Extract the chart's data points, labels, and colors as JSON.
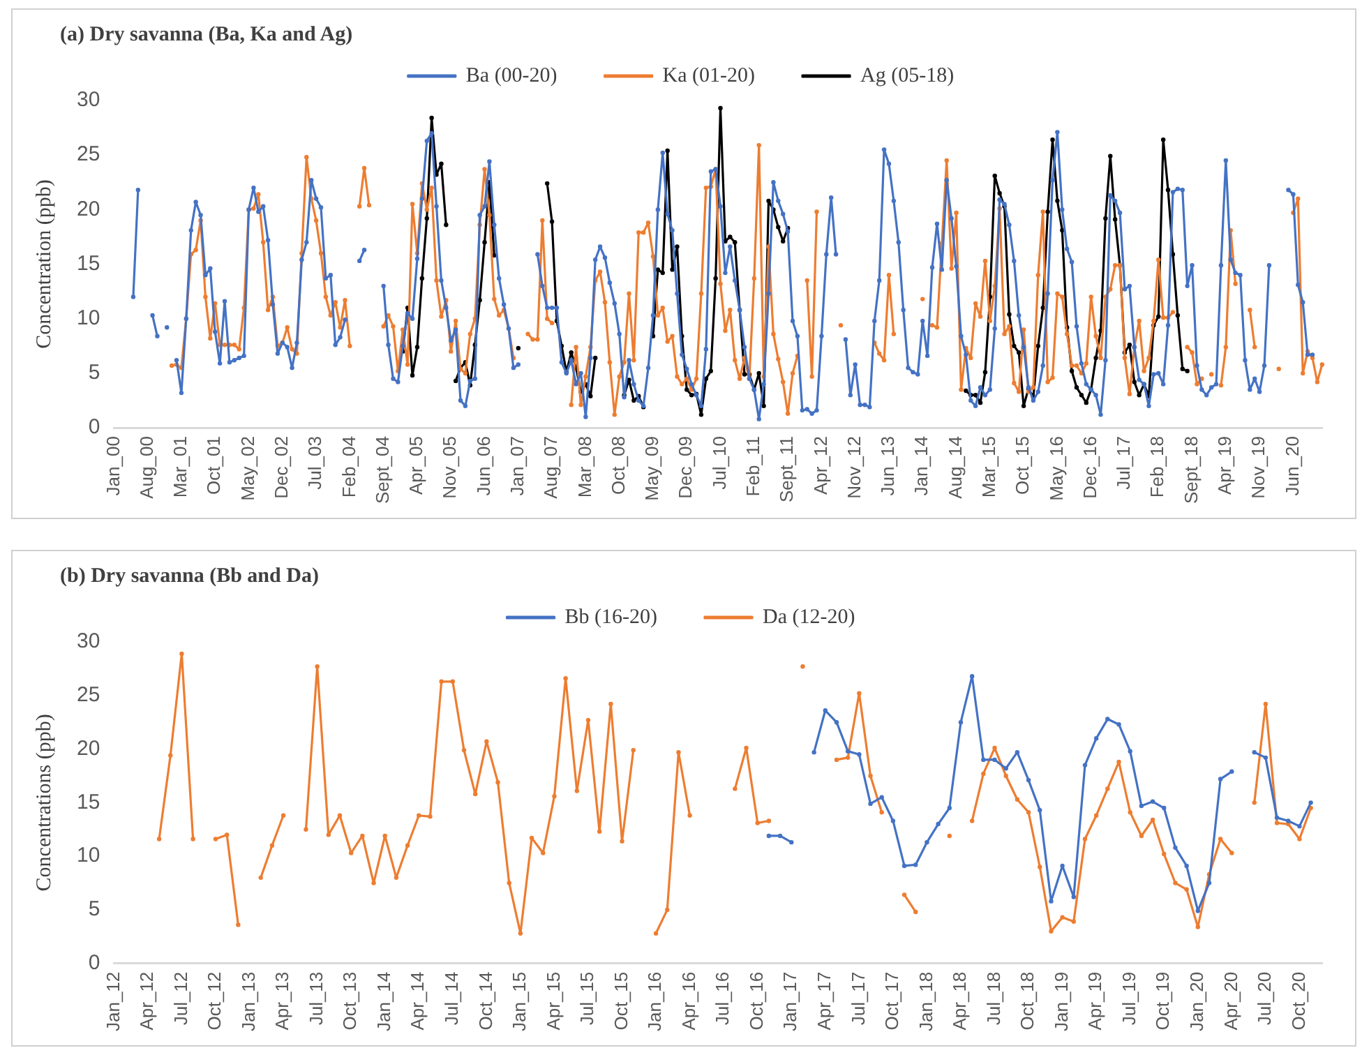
{
  "chart_data": [
    {
      "type": "line",
      "title": "(a) Dry savanna (Ba, Ka and Ag)",
      "ylabel": "Concentration (ppb)",
      "legend": "top",
      "marker": "circle",
      "line_style": "solid",
      "ylim": [
        0,
        30
      ],
      "yticks": [
        0,
        5,
        10,
        15,
        20,
        25,
        30
      ],
      "categories": [
        "Jan_00",
        null,
        null,
        null,
        null,
        null,
        null,
        "Aug_00",
        null,
        null,
        null,
        null,
        null,
        null,
        "Mar_01",
        null,
        null,
        null,
        null,
        null,
        null,
        "Oct_01",
        null,
        null,
        null,
        null,
        null,
        null,
        "May_02",
        null,
        null,
        null,
        null,
        null,
        null,
        "Dec_02",
        null,
        null,
        null,
        null,
        null,
        null,
        "Jul_03",
        null,
        null,
        null,
        null,
        null,
        null,
        "Feb_04",
        null,
        null,
        null,
        null,
        null,
        null,
        "Sept_04",
        null,
        null,
        null,
        null,
        null,
        null,
        "Apr_05",
        null,
        null,
        null,
        null,
        null,
        null,
        "Nov_05",
        null,
        null,
        null,
        null,
        null,
        null,
        "Jun_06",
        null,
        null,
        null,
        null,
        null,
        null,
        "Jan_07",
        null,
        null,
        null,
        null,
        null,
        null,
        "Aug_07",
        null,
        null,
        null,
        null,
        null,
        null,
        "Mar_08",
        null,
        null,
        null,
        null,
        null,
        null,
        "Oct_08",
        null,
        null,
        null,
        null,
        null,
        null,
        "May_09",
        null,
        null,
        null,
        null,
        null,
        null,
        "Dec_09",
        null,
        null,
        null,
        null,
        null,
        null,
        "Jul_10",
        null,
        null,
        null,
        null,
        null,
        null,
        "Feb_11",
        null,
        null,
        null,
        null,
        null,
        null,
        "Sept_11",
        null,
        null,
        null,
        null,
        null,
        null,
        "Apr_12",
        null,
        null,
        null,
        null,
        null,
        null,
        "Nov_12",
        null,
        null,
        null,
        null,
        null,
        null,
        "Jun_13",
        null,
        null,
        null,
        null,
        null,
        null,
        "Jan_14",
        null,
        null,
        null,
        null,
        null,
        null,
        "Aug_14",
        null,
        null,
        null,
        null,
        null,
        null,
        "Mar_15",
        null,
        null,
        null,
        null,
        null,
        null,
        "Oct_15",
        null,
        null,
        null,
        null,
        null,
        null,
        "May_16",
        null,
        null,
        null,
        null,
        null,
        null,
        "Dec_16",
        null,
        null,
        null,
        null,
        null,
        null,
        "Jul_17",
        null,
        null,
        null,
        null,
        null,
        null,
        "Feb_18",
        null,
        null,
        null,
        null,
        null,
        null,
        "Sept_18",
        null,
        null,
        null,
        null,
        null,
        null,
        "Apr_19",
        null,
        null,
        null,
        null,
        null,
        null,
        "Nov_19",
        null,
        null,
        null,
        null,
        null,
        null,
        "Jun_20",
        null,
        null,
        null,
        null,
        null,
        null
      ],
      "series": [
        {
          "name": "Ba (00-20)",
          "color": "#4472c4",
          "values": [
            null,
            null,
            null,
            null,
            12,
            21.8,
            null,
            null,
            10.3,
            8.4,
            null,
            9.2,
            null,
            6.2,
            3.2,
            10,
            18.1,
            20.7,
            19.5,
            14,
            14.6,
            8.8,
            5.9,
            11.6,
            6,
            6.2,
            6.4,
            6.6,
            20,
            22,
            19.8,
            20.3,
            17.2,
            11.3,
            6.8,
            7.8,
            7.4,
            5.5,
            7.8,
            15.4,
            17,
            22.7,
            21,
            20.2,
            13.7,
            14,
            7.6,
            8.3,
            9.9,
            null,
            null,
            15.3,
            16.3,
            null,
            null,
            null,
            13,
            7.6,
            4.5,
            4.2,
            7.5,
            10.5,
            10,
            15.5,
            21,
            26.3,
            27,
            20.3,
            13.5,
            11,
            8,
            9,
            2.5,
            2,
            4.3,
            4.5,
            19.5,
            20.3,
            24.4,
            18.6,
            13.7,
            11.3,
            9.1,
            5.5,
            5.8,
            null,
            null,
            null,
            15.9,
            13,
            11,
            11,
            11,
            6,
            5,
            6.2,
            4,
            5,
            1,
            6.4,
            15.4,
            16.6,
            15.6,
            13.3,
            11.4,
            8.6,
            2.8,
            6.2,
            4,
            2.5,
            2,
            5.5,
            10.3,
            20,
            25.2,
            19.6,
            18.1,
            12.3,
            6.7,
            5.4,
            4,
            3,
            2,
            7.2,
            23.5,
            23.7,
            20.3,
            14.2,
            16.6,
            13.5,
            10.8,
            7.4,
            4.5,
            3.5,
            0.8,
            4,
            12.3,
            22.5,
            20.8,
            19.6,
            18,
            9.8,
            8.4,
            1.6,
            1.7,
            1.3,
            1.6,
            8.4,
            15.9,
            21.1,
            15.9,
            null,
            8.1,
            3,
            5.8,
            2.1,
            2.1,
            1.9,
            9.8,
            13.5,
            25.5,
            24.2,
            20.8,
            17,
            10.8,
            5.5,
            5.1,
            4.9,
            9.8,
            6.6,
            14.7,
            18.7,
            14.5,
            22.7,
            19.2,
            14.8,
            8.4,
            6.7,
            2.5,
            2,
            3.7,
            3,
            3.5,
            9.1,
            20.9,
            20.5,
            18.6,
            15.3,
            10.3,
            7.4,
            3.7,
            2.5,
            3.3,
            5.7,
            12.3,
            22.7,
            27.1,
            20,
            16.4,
            15.2,
            9.3,
            5.9,
            4,
            3.5,
            3,
            1.2,
            6.2,
            21.3,
            20.8,
            19.7,
            12.7,
            13,
            7.4,
            4.4,
            4,
            2,
            4.9,
            5,
            4,
            9.4,
            21.6,
            21.9,
            21.8,
            13,
            14.9,
            5.7,
            3.5,
            3,
            3.7,
            4,
            14.9,
            24.5,
            15.4,
            14.2,
            14,
            6.2,
            3.5,
            4.5,
            3.3,
            5.7,
            14.9,
            null,
            null,
            null,
            21.8,
            21.4,
            13.1,
            11.5,
            6.7,
            6.7,
            null,
            null
          ]
        },
        {
          "name": "Ka (01-20)",
          "color": "#ed7d31",
          "values": [
            null,
            null,
            null,
            null,
            null,
            null,
            null,
            null,
            null,
            null,
            null,
            null,
            5.7,
            5.8,
            5.5,
            10,
            15.9,
            16.3,
            19,
            12,
            8.2,
            11.4,
            7.6,
            7.6,
            7.6,
            7.6,
            7.2,
            11,
            20,
            20.1,
            21.4,
            17,
            10.8,
            12,
            7.5,
            7.8,
            9.2,
            7.2,
            6.8,
            16,
            24.8,
            21,
            19,
            16,
            12,
            10.3,
            11.5,
            9.2,
            11.7,
            7.5,
            null,
            20.3,
            23.8,
            20.4,
            null,
            null,
            9.3,
            10.3,
            9.3,
            5.2,
            9,
            5.8,
            20.5,
            16,
            22.4,
            20,
            22,
            13.5,
            10.2,
            11.7,
            7,
            9.8,
            5.4,
            5,
            8.6,
            10,
            18.6,
            23.7,
            19.5,
            11.8,
            10.3,
            10.8,
            9.1,
            6.4,
            null,
            null,
            8.6,
            8.1,
            8.1,
            19,
            10,
            9.6,
            null,
            null,
            null,
            2.1,
            7.4,
            2.1,
            4.7,
            7.4,
            13.5,
            14.3,
            11.5,
            6,
            1.2,
            4.7,
            6,
            12.3,
            6.2,
            17.9,
            17.9,
            18.8,
            15.7,
            10.3,
            11,
            7.9,
            8.4,
            4.7,
            4,
            4.5,
            3.5,
            4.5,
            12.3,
            22,
            22.1,
            23.7,
            13.2,
            8.9,
            10.8,
            6.2,
            4.5,
            6.4,
            4.5,
            13.7,
            25.9,
            4.7,
            16.6,
            8.6,
            6.3,
            4.2,
            1.3,
            5,
            6.6,
            null,
            13.5,
            4.7,
            19.8,
            null,
            null,
            null,
            null,
            9.4,
            null,
            null,
            null,
            null,
            null,
            null,
            7.8,
            6.8,
            6.2,
            14,
            8.6,
            null,
            null,
            null,
            null,
            null,
            11.8,
            null,
            9.4,
            9.2,
            16.9,
            24.5,
            14.6,
            19.7,
            3.5,
            7.3,
            6.4,
            11.4,
            10.2,
            15.3,
            9.8,
            13,
            20.1,
            8.6,
            9.3,
            4.1,
            3.3,
            9,
            3.3,
            3.7,
            14,
            19.8,
            4.2,
            4.6,
            12.3,
            12,
            8.6,
            5.7,
            5.7,
            5,
            5.9,
            12,
            8.4,
            6.4,
            12,
            12.7,
            14.9,
            14.9,
            6.4,
            3.1,
            7.4,
            9.8,
            5.2,
            6.4,
            9.8,
            15.4,
            10.1,
            10.1,
            10.6,
            null,
            null,
            7.4,
            6.9,
            4,
            4.5,
            null,
            4.9,
            null,
            3.9,
            7.4,
            18.1,
            13.2,
            null,
            null,
            10.8,
            7.4,
            null,
            null,
            null,
            null,
            5.4,
            null,
            null,
            19.7,
            21,
            5,
            7,
            6.4,
            4.2,
            5.8
          ]
        },
        {
          "name": "Ag (05-18)",
          "color": "#000000",
          "values": [
            null,
            null,
            null,
            null,
            null,
            null,
            null,
            null,
            null,
            null,
            null,
            null,
            null,
            null,
            null,
            null,
            null,
            null,
            null,
            null,
            null,
            null,
            null,
            null,
            null,
            null,
            null,
            null,
            null,
            null,
            null,
            null,
            null,
            null,
            null,
            null,
            null,
            null,
            null,
            null,
            null,
            null,
            null,
            null,
            null,
            null,
            null,
            null,
            null,
            null,
            null,
            null,
            null,
            null,
            null,
            null,
            null,
            null,
            null,
            null,
            7,
            11,
            4.8,
            7.4,
            13.7,
            19.2,
            28.4,
            23.2,
            24.2,
            18.6,
            null,
            4.3,
            5.5,
            6,
            3.9,
            7.6,
            11.7,
            17,
            22.5,
            15.8,
            null,
            null,
            null,
            null,
            7.3,
            null,
            null,
            null,
            null,
            null,
            22.4,
            18.9,
            9.8,
            7.5,
            5.1,
            6.9,
            5.5,
            3.3,
            4,
            2.9,
            6.4,
            null,
            null,
            null,
            null,
            null,
            3,
            4.4,
            2.5,
            2.9,
            1.9,
            null,
            8.4,
            14.5,
            14.2,
            25.4,
            14.5,
            16.6,
            8.4,
            3.5,
            3,
            3.1,
            1.2,
            4.5,
            5.2,
            13.7,
            29.3,
            17.1,
            17.5,
            17,
            10.8,
            4.9,
            4.9,
            3.5,
            5,
            2,
            20.8,
            20,
            18.4,
            17.1,
            18.3,
            null,
            null,
            null,
            null,
            null,
            null,
            null,
            null,
            null,
            null,
            null,
            null,
            null,
            null,
            null,
            null,
            null,
            null,
            null,
            null,
            null,
            null,
            null,
            null,
            null,
            null,
            null,
            null,
            null,
            null,
            null,
            null,
            null,
            null,
            null,
            null,
            3.4,
            3,
            3,
            2.3,
            5.1,
            12,
            23.1,
            21.5,
            20.3,
            10.4,
            7.5,
            6.9,
            2,
            3.6,
            2.8,
            7.5,
            11,
            19.8,
            26.4,
            20.8,
            18.1,
            9.2,
            5.2,
            3.7,
            3,
            2.3,
            3.5,
            6.4,
            8.9,
            19.2,
            24.9,
            19.1,
            14.9,
            6.9,
            7.6,
            4.2,
            3,
            4,
            2.9,
            9.4,
            10.2,
            26.4,
            21.8,
            15.9,
            10.3,
            5.4,
            5.2,
            null,
            null,
            null,
            null,
            null,
            null,
            null,
            null,
            null,
            null,
            null,
            null,
            null,
            null,
            null,
            null,
            null,
            null,
            null,
            null,
            null,
            null,
            null,
            null,
            null,
            null,
            null,
            null
          ]
        }
      ]
    },
    {
      "type": "line",
      "title": "(b) Dry savanna (Bb and Da)",
      "ylabel": "Concentrations (ppb)",
      "legend": "top",
      "marker": "circle",
      "line_style": "solid",
      "ylim": [
        0,
        30
      ],
      "yticks": [
        0,
        5,
        10,
        15,
        20,
        25,
        30
      ],
      "categories": [
        "Jan_12",
        null,
        null,
        "Apr_12",
        null,
        null,
        "Jul_12",
        null,
        null,
        "Oct_12",
        null,
        null,
        "Jan_13",
        null,
        null,
        "Apr_13",
        null,
        null,
        "Jul_13",
        null,
        null,
        "Oct_13",
        null,
        null,
        "Jan_14",
        null,
        null,
        "Apr_14",
        null,
        null,
        "Jul_14",
        null,
        null,
        "Oct_14",
        null,
        null,
        "Jan_15",
        null,
        null,
        "Apr_15",
        null,
        null,
        "Jul_15",
        null,
        null,
        "Oct_15",
        null,
        null,
        "Jan_16",
        null,
        null,
        "Apr_16",
        null,
        null,
        "Jul_16",
        null,
        null,
        "Oct_16",
        null,
        null,
        "Jan_17",
        null,
        null,
        "Apr_17",
        null,
        null,
        "Jul_17",
        null,
        null,
        "Oct_17",
        null,
        null,
        "Jan_18",
        null,
        null,
        "Apr_18",
        null,
        null,
        "Jul_18",
        null,
        null,
        "Oct_18",
        null,
        null,
        "Jan_19",
        null,
        null,
        "Apr_19",
        null,
        null,
        "Jul_19",
        null,
        null,
        "Oct_19",
        null,
        null,
        "Jan_20",
        null,
        null,
        "Apr_20",
        null,
        null,
        "Jul_20",
        null,
        null,
        "Oct_20",
        null,
        null
      ],
      "series": [
        {
          "name": "Bb (16-20)",
          "color": "#4472c4",
          "values": [
            null,
            null,
            null,
            null,
            null,
            null,
            null,
            null,
            null,
            null,
            null,
            null,
            null,
            null,
            null,
            null,
            null,
            null,
            null,
            null,
            null,
            null,
            null,
            null,
            null,
            null,
            null,
            null,
            null,
            null,
            null,
            null,
            null,
            null,
            null,
            null,
            null,
            null,
            null,
            null,
            null,
            null,
            null,
            null,
            null,
            null,
            null,
            null,
            null,
            null,
            null,
            null,
            null,
            null,
            null,
            null,
            null,
            null,
            11.9,
            11.9,
            11.3,
            null,
            19.7,
            23.6,
            22.5,
            19.8,
            19.5,
            14.9,
            15.5,
            13.3,
            9.1,
            9.2,
            11.3,
            13,
            14.5,
            22.5,
            26.8,
            19,
            19,
            18.2,
            19.7,
            17.1,
            14.3,
            5.8,
            9.1,
            6.2,
            18.5,
            21,
            22.8,
            22.3,
            19.8,
            14.7,
            15.1,
            14.5,
            10.8,
            9.1,
            4.9,
            7.5,
            17.2,
            17.9,
            null,
            19.7,
            19.2,
            13.6,
            13.3,
            12.8,
            15,
            null
          ]
        },
        {
          "name": "Da (12-20)",
          "color": "#ed7d31",
          "values": [
            null,
            null,
            null,
            null,
            11.6,
            19.4,
            28.9,
            11.6,
            null,
            11.6,
            12,
            3.6,
            null,
            8,
            11,
            13.8,
            null,
            12.5,
            27.7,
            12,
            13.8,
            10.3,
            11.9,
            7.5,
            11.9,
            8,
            11,
            13.8,
            13.7,
            26.3,
            26.3,
            19.9,
            15.8,
            20.7,
            16.9,
            7.5,
            2.8,
            11.7,
            10.3,
            15.6,
            26.6,
            16.1,
            22.7,
            12.3,
            24.2,
            11.4,
            19.9,
            null,
            2.8,
            5,
            19.7,
            13.8,
            null,
            null,
            null,
            16.3,
            20.1,
            13.1,
            13.3,
            null,
            null,
            27.7,
            null,
            null,
            19,
            19.2,
            25.2,
            17.5,
            14.1,
            null,
            6.4,
            4.8,
            null,
            null,
            11.9,
            null,
            13.3,
            17.7,
            20.1,
            17.5,
            15.3,
            14.1,
            9,
            3,
            4.3,
            3.9,
            11.6,
            13.8,
            16.3,
            18.8,
            14.1,
            11.9,
            13.4,
            10.2,
            7.5,
            6.9,
            3.4,
            8.3,
            11.6,
            10.3,
            null,
            15,
            24.2,
            13.1,
            13,
            11.6,
            14.5,
            null
          ]
        }
      ]
    }
  ]
}
